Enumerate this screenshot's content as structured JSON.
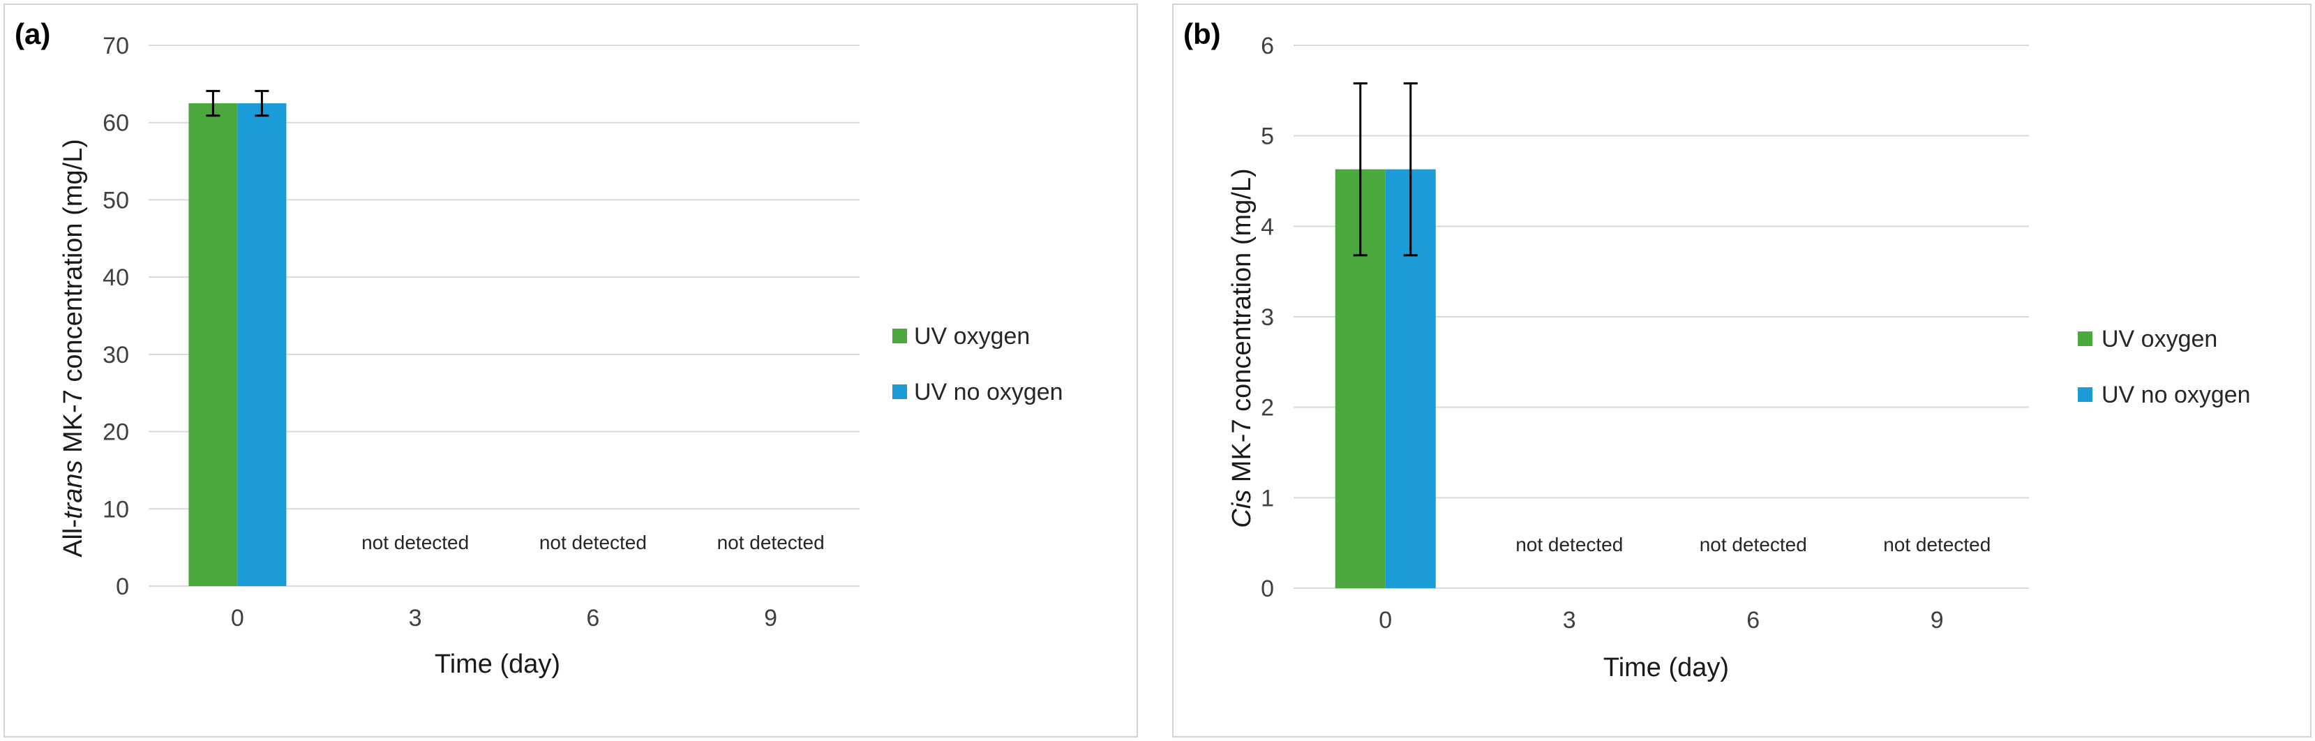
{
  "colors": {
    "uv_oxygen": "#4aa83c",
    "uv_no_oxygen": "#1b9bd7",
    "grid": "#d9d9d9"
  },
  "chart_data": [
    {
      "panel": "(a)",
      "type": "bar",
      "xlabel": "Time (day)",
      "ylabel_prefix": "All-",
      "ylabel_italic": "trans",
      "ylabel_suffix": " MK-7 concentration (mg/L)",
      "categories": [
        "0",
        "3",
        "6",
        "9"
      ],
      "ylim": [
        0,
        70
      ],
      "yticks": [
        "0",
        "10",
        "20",
        "30",
        "40",
        "50",
        "60",
        "70"
      ],
      "series": [
        {
          "name": "UV oxygen",
          "values": [
            62.5,
            0,
            0,
            0
          ],
          "errors": [
            1.6,
            null,
            null,
            null
          ]
        },
        {
          "name": "UV no oxygen",
          "values": [
            62.5,
            0,
            0,
            0
          ],
          "errors": [
            1.6,
            null,
            null,
            null
          ]
        }
      ],
      "annotations": [
        "",
        "not detected",
        "not detected",
        "not detected"
      ],
      "legend_position": "right"
    },
    {
      "panel": "(b)",
      "type": "bar",
      "xlabel": "Time (day)",
      "ylabel_prefix": "",
      "ylabel_italic": "Cis",
      "ylabel_suffix": " MK-7 concentration (mg/L)",
      "categories": [
        "0",
        "3",
        "6",
        "9"
      ],
      "ylim": [
        0,
        6
      ],
      "yticks": [
        "0",
        "1",
        "2",
        "3",
        "4",
        "5",
        "6"
      ],
      "series": [
        {
          "name": "UV oxygen",
          "values": [
            4.63,
            0,
            0,
            0
          ],
          "errors": [
            0.95,
            null,
            null,
            null
          ]
        },
        {
          "name": "UV no oxygen",
          "values": [
            4.63,
            0,
            0,
            0
          ],
          "errors": [
            0.95,
            null,
            null,
            null
          ]
        }
      ],
      "annotations": [
        "",
        "not detected",
        "not detected",
        "not detected"
      ],
      "legend_position": "right"
    }
  ]
}
